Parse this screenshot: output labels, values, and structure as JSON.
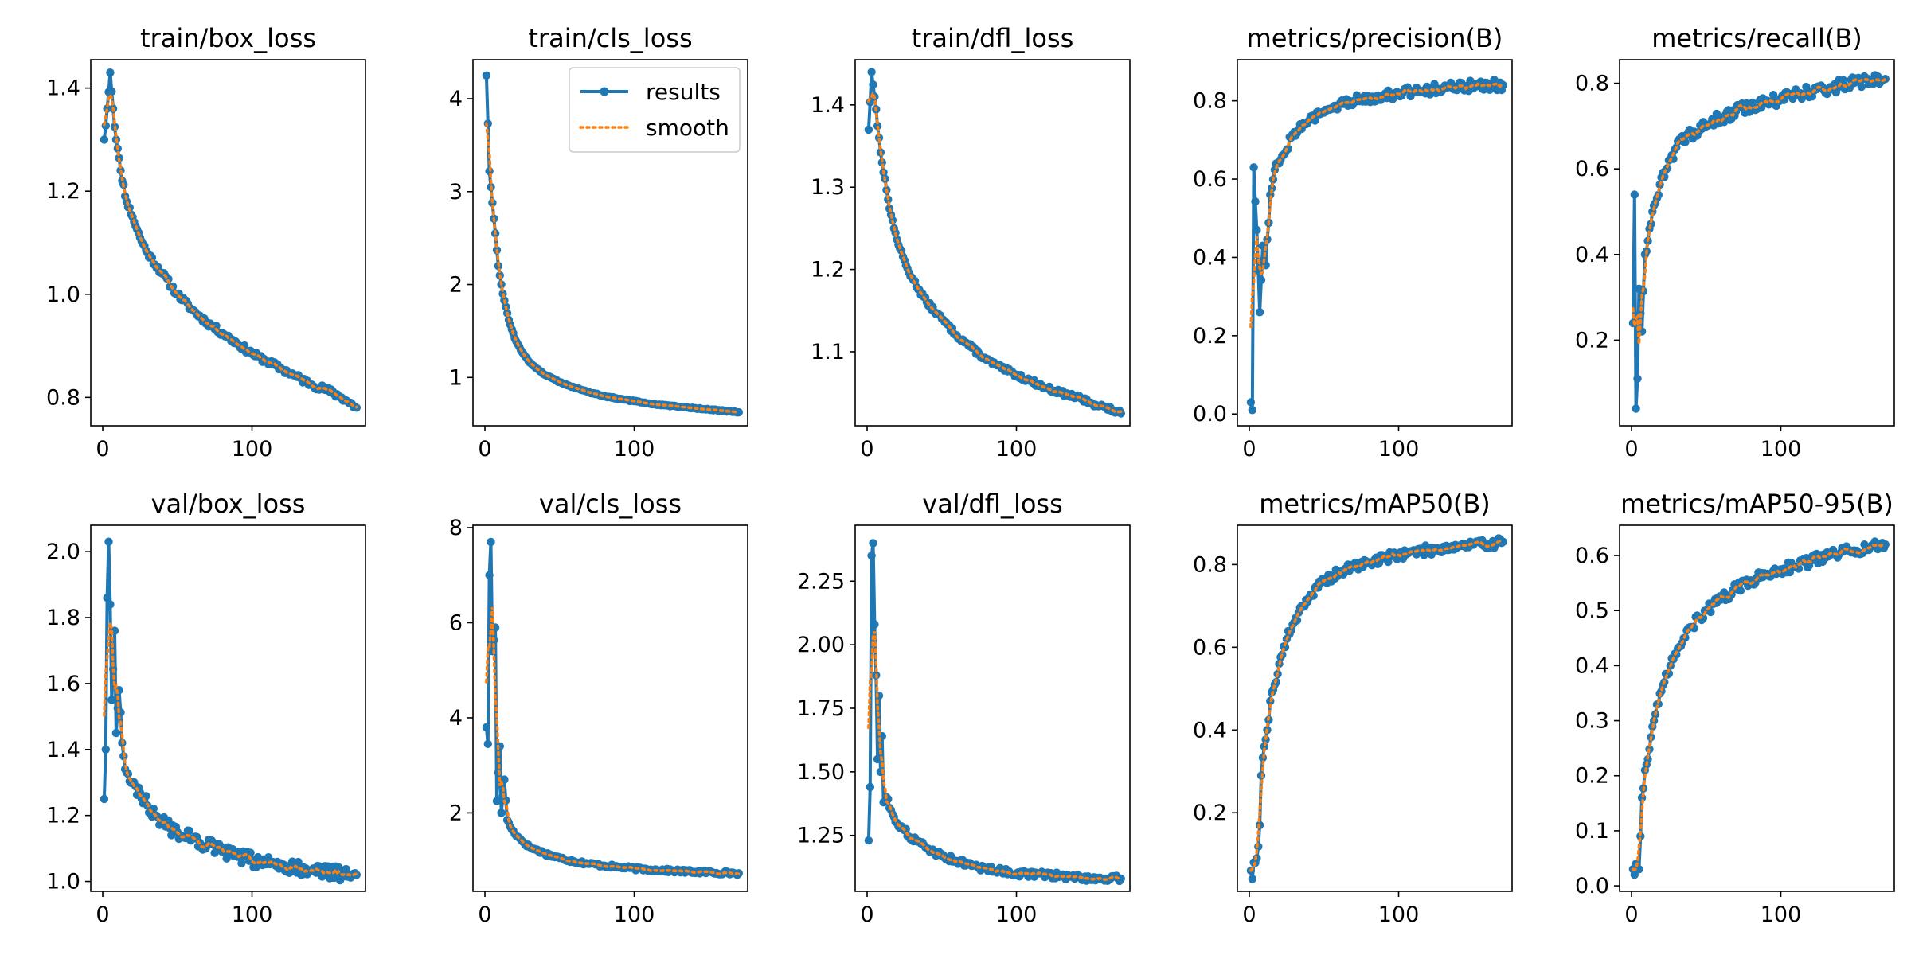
{
  "figure": {
    "legend": {
      "entries": [
        "results",
        "smooth"
      ],
      "placement": "top-right",
      "panel": 1
    }
  },
  "colors": {
    "results": "#1f77b4",
    "smooth": "#ff7f0e"
  },
  "chart_data": [
    {
      "type": "line",
      "title": "train/box_loss",
      "xlim": [
        -8,
        176
      ],
      "ylim": [
        0.745,
        1.455
      ],
      "xticks": [
        0,
        100
      ],
      "yticks": [
        0.8,
        1.0,
        1.2,
        1.4
      ],
      "yticklabels": [
        "0.8",
        "1.0",
        "1.2",
        "1.4"
      ],
      "anchors": [
        [
          1,
          1.3
        ],
        [
          3,
          1.36
        ],
        [
          5,
          1.43
        ],
        [
          7,
          1.36
        ],
        [
          9,
          1.3
        ],
        [
          12,
          1.24
        ],
        [
          16,
          1.18
        ],
        [
          20,
          1.15
        ],
        [
          25,
          1.11
        ],
        [
          30,
          1.08
        ],
        [
          40,
          1.04
        ],
        [
          50,
          1.0
        ],
        [
          60,
          0.97
        ],
        [
          70,
          0.945
        ],
        [
          80,
          0.925
        ],
        [
          90,
          0.905
        ],
        [
          100,
          0.885
        ],
        [
          110,
          0.87
        ],
        [
          120,
          0.855
        ],
        [
          130,
          0.84
        ],
        [
          140,
          0.825
        ],
        [
          150,
          0.815
        ],
        [
          160,
          0.8
        ],
        [
          170,
          0.78
        ]
      ],
      "noise": 0.006,
      "seed": 11
    },
    {
      "type": "line",
      "title": "train/cls_loss",
      "xlim": [
        -8,
        176
      ],
      "ylim": [
        0.48,
        4.42
      ],
      "xticks": [
        0,
        100
      ],
      "yticks": [
        1,
        2,
        3,
        4
      ],
      "yticklabels": [
        "1",
        "2",
        "3",
        "4"
      ],
      "anchors": [
        [
          1,
          4.25
        ],
        [
          3,
          3.22
        ],
        [
          5,
          2.88
        ],
        [
          7,
          2.55
        ],
        [
          9,
          2.2
        ],
        [
          12,
          1.9
        ],
        [
          16,
          1.62
        ],
        [
          20,
          1.42
        ],
        [
          25,
          1.27
        ],
        [
          30,
          1.16
        ],
        [
          40,
          1.03
        ],
        [
          50,
          0.95
        ],
        [
          60,
          0.89
        ],
        [
          70,
          0.84
        ],
        [
          80,
          0.8
        ],
        [
          90,
          0.77
        ],
        [
          100,
          0.745
        ],
        [
          110,
          0.72
        ],
        [
          120,
          0.7
        ],
        [
          130,
          0.685
        ],
        [
          140,
          0.67
        ],
        [
          150,
          0.655
        ],
        [
          160,
          0.64
        ],
        [
          170,
          0.625
        ]
      ],
      "noise": 0.006,
      "seed": 12
    },
    {
      "type": "line",
      "title": "train/dfl_loss",
      "xlim": [
        -8,
        176
      ],
      "ylim": [
        1.01,
        1.455
      ],
      "xticks": [
        0,
        100
      ],
      "yticks": [
        1.1,
        1.2,
        1.3,
        1.4
      ],
      "yticklabels": [
        "1.1",
        "1.2",
        "1.3",
        "1.4"
      ],
      "anchors": [
        [
          1,
          1.37
        ],
        [
          3,
          1.44
        ],
        [
          5,
          1.41
        ],
        [
          8,
          1.36
        ],
        [
          10,
          1.33
        ],
        [
          14,
          1.285
        ],
        [
          18,
          1.25
        ],
        [
          22,
          1.225
        ],
        [
          26,
          1.205
        ],
        [
          30,
          1.19
        ],
        [
          40,
          1.16
        ],
        [
          50,
          1.14
        ],
        [
          60,
          1.12
        ],
        [
          70,
          1.105
        ],
        [
          80,
          1.09
        ],
        [
          90,
          1.08
        ],
        [
          100,
          1.072
        ],
        [
          110,
          1.064
        ],
        [
          120,
          1.056
        ],
        [
          130,
          1.05
        ],
        [
          140,
          1.045
        ],
        [
          150,
          1.038
        ],
        [
          160,
          1.032
        ],
        [
          170,
          1.025
        ]
      ],
      "noise": 0.003,
      "seed": 13
    },
    {
      "type": "line",
      "title": "metrics/precision(B)",
      "xlim": [
        -8,
        176
      ],
      "ylim": [
        -0.03,
        0.905
      ],
      "xticks": [
        0,
        100
      ],
      "yticks": [
        0.0,
        0.2,
        0.4,
        0.6,
        0.8
      ],
      "yticklabels": [
        "0.0",
        "0.2",
        "0.4",
        "0.6",
        "0.8"
      ],
      "anchors": [
        [
          1,
          0.03
        ],
        [
          2,
          0.01
        ],
        [
          3,
          0.63
        ],
        [
          5,
          0.47
        ],
        [
          7,
          0.26
        ],
        [
          9,
          0.43
        ],
        [
          11,
          0.38
        ],
        [
          14,
          0.56
        ],
        [
          18,
          0.64
        ],
        [
          22,
          0.66
        ],
        [
          30,
          0.72
        ],
        [
          40,
          0.75
        ],
        [
          50,
          0.77
        ],
        [
          60,
          0.79
        ],
        [
          70,
          0.8
        ],
        [
          80,
          0.81
        ],
        [
          90,
          0.815
        ],
        [
          100,
          0.82
        ],
        [
          120,
          0.83
        ],
        [
          140,
          0.835
        ],
        [
          160,
          0.84
        ],
        [
          170,
          0.84
        ]
      ],
      "noise": 0.014,
      "seed": 14
    },
    {
      "type": "line",
      "title": "metrics/recall(B)",
      "xlim": [
        -8,
        176
      ],
      "ylim": [
        0.0,
        0.855
      ],
      "xticks": [
        0,
        100
      ],
      "yticks": [
        0.2,
        0.4,
        0.6,
        0.8
      ],
      "yticklabels": [
        "0.2",
        "0.4",
        "0.6",
        "0.8"
      ],
      "anchors": [
        [
          1,
          0.24
        ],
        [
          2,
          0.54
        ],
        [
          3,
          0.04
        ],
        [
          4,
          0.11
        ],
        [
          5,
          0.32
        ],
        [
          7,
          0.22
        ],
        [
          9,
          0.4
        ],
        [
          12,
          0.46
        ],
        [
          16,
          0.52
        ],
        [
          20,
          0.58
        ],
        [
          25,
          0.62
        ],
        [
          30,
          0.65
        ],
        [
          40,
          0.68
        ],
        [
          50,
          0.7
        ],
        [
          60,
          0.72
        ],
        [
          70,
          0.735
        ],
        [
          80,
          0.745
        ],
        [
          90,
          0.755
        ],
        [
          100,
          0.765
        ],
        [
          120,
          0.78
        ],
        [
          140,
          0.795
        ],
        [
          160,
          0.805
        ],
        [
          170,
          0.81
        ]
      ],
      "noise": 0.015,
      "seed": 15
    },
    {
      "type": "line",
      "title": "val/box_loss",
      "xlim": [
        -8,
        176
      ],
      "ylim": [
        0.97,
        2.08
      ],
      "xticks": [
        0,
        100
      ],
      "yticks": [
        1.0,
        1.2,
        1.4,
        1.6,
        1.8,
        2.0
      ],
      "yticklabels": [
        "1.0",
        "1.2",
        "1.4",
        "1.6",
        "1.8",
        "2.0"
      ],
      "anchors": [
        [
          1,
          1.25
        ],
        [
          2,
          1.4
        ],
        [
          3,
          1.86
        ],
        [
          4,
          2.03
        ],
        [
          5,
          1.84
        ],
        [
          6,
          1.55
        ],
        [
          8,
          1.76
        ],
        [
          9,
          1.45
        ],
        [
          11,
          1.58
        ],
        [
          13,
          1.42
        ],
        [
          16,
          1.33
        ],
        [
          20,
          1.3
        ],
        [
          25,
          1.27
        ],
        [
          30,
          1.23
        ],
        [
          35,
          1.2
        ],
        [
          40,
          1.18
        ],
        [
          50,
          1.15
        ],
        [
          60,
          1.13
        ],
        [
          70,
          1.11
        ],
        [
          80,
          1.09
        ],
        [
          90,
          1.075
        ],
        [
          100,
          1.065
        ],
        [
          120,
          1.05
        ],
        [
          140,
          1.035
        ],
        [
          160,
          1.025
        ],
        [
          170,
          1.02
        ]
      ],
      "noise": 0.022,
      "seed": 16
    },
    {
      "type": "line",
      "title": "val/cls_loss",
      "xlim": [
        -8,
        176
      ],
      "ylim": [
        0.35,
        8.05
      ],
      "xticks": [
        0,
        100
      ],
      "yticks": [
        2,
        4,
        6,
        8
      ],
      "yticklabels": [
        "2",
        "4",
        "6",
        "8"
      ],
      "anchors": [
        [
          1,
          3.8
        ],
        [
          2,
          3.45
        ],
        [
          3,
          7.0
        ],
        [
          4,
          7.7
        ],
        [
          5,
          5.4
        ],
        [
          7,
          5.9
        ],
        [
          8,
          2.25
        ],
        [
          10,
          3.4
        ],
        [
          11,
          2.0
        ],
        [
          13,
          2.7
        ],
        [
          15,
          1.85
        ],
        [
          18,
          1.65
        ],
        [
          22,
          1.5
        ],
        [
          26,
          1.38
        ],
        [
          30,
          1.28
        ],
        [
          40,
          1.15
        ],
        [
          50,
          1.05
        ],
        [
          60,
          0.98
        ],
        [
          70,
          0.93
        ],
        [
          80,
          0.89
        ],
        [
          90,
          0.86
        ],
        [
          100,
          0.83
        ],
        [
          120,
          0.79
        ],
        [
          140,
          0.76
        ],
        [
          160,
          0.74
        ],
        [
          170,
          0.73
        ]
      ],
      "noise": 0.035,
      "seed": 17
    },
    {
      "type": "line",
      "title": "val/dfl_loss",
      "xlim": [
        -8,
        176
      ],
      "ylim": [
        1.03,
        2.47
      ],
      "xticks": [
        0,
        100
      ],
      "yticks": [
        1.25,
        1.5,
        1.75,
        2.0,
        2.25
      ],
      "yticklabels": [
        "1.25",
        "1.50",
        "1.75",
        "2.00",
        "2.25"
      ],
      "anchors": [
        [
          1,
          1.23
        ],
        [
          2,
          1.44
        ],
        [
          3,
          2.35
        ],
        [
          4,
          2.4
        ],
        [
          5,
          2.08
        ],
        [
          6,
          1.88
        ],
        [
          7,
          1.55
        ],
        [
          8,
          1.8
        ],
        [
          9,
          1.5
        ],
        [
          10,
          1.64
        ],
        [
          11,
          1.38
        ],
        [
          13,
          1.4
        ],
        [
          16,
          1.35
        ],
        [
          20,
          1.3
        ],
        [
          25,
          1.27
        ],
        [
          30,
          1.24
        ],
        [
          40,
          1.2
        ],
        [
          50,
          1.17
        ],
        [
          60,
          1.15
        ],
        [
          70,
          1.13
        ],
        [
          80,
          1.12
        ],
        [
          90,
          1.11
        ],
        [
          100,
          1.1
        ],
        [
          120,
          1.095
        ],
        [
          140,
          1.085
        ],
        [
          160,
          1.08
        ],
        [
          170,
          1.08
        ]
      ],
      "noise": 0.012,
      "seed": 18
    },
    {
      "type": "line",
      "title": "metrics/mAP50(B)",
      "xlim": [
        -8,
        176
      ],
      "ylim": [
        0.01,
        0.895
      ],
      "xticks": [
        0,
        100
      ],
      "yticks": [
        0.2,
        0.4,
        0.6,
        0.8
      ],
      "yticklabels": [
        "0.2",
        "0.4",
        "0.6",
        "0.8"
      ],
      "anchors": [
        [
          1,
          0.06
        ],
        [
          2,
          0.04
        ],
        [
          3,
          0.08
        ],
        [
          5,
          0.09
        ],
        [
          7,
          0.17
        ],
        [
          8,
          0.29
        ],
        [
          10,
          0.36
        ],
        [
          12,
          0.4
        ],
        [
          14,
          0.47
        ],
        [
          17,
          0.51
        ],
        [
          20,
          0.56
        ],
        [
          25,
          0.62
        ],
        [
          30,
          0.66
        ],
        [
          35,
          0.7
        ],
        [
          40,
          0.72
        ],
        [
          50,
          0.76
        ],
        [
          60,
          0.78
        ],
        [
          70,
          0.795
        ],
        [
          80,
          0.805
        ],
        [
          90,
          0.815
        ],
        [
          100,
          0.825
        ],
        [
          120,
          0.835
        ],
        [
          140,
          0.845
        ],
        [
          160,
          0.85
        ],
        [
          170,
          0.855
        ]
      ],
      "noise": 0.012,
      "seed": 19
    },
    {
      "type": "line",
      "title": "metrics/mAP50-95(B)",
      "xlim": [
        -8,
        176
      ],
      "ylim": [
        -0.01,
        0.655
      ],
      "xticks": [
        0,
        100
      ],
      "yticks": [
        0.0,
        0.1,
        0.2,
        0.3,
        0.4,
        0.5,
        0.6
      ],
      "yticklabels": [
        "0.0",
        "0.1",
        "0.2",
        "0.3",
        "0.4",
        "0.5",
        "0.6"
      ],
      "anchors": [
        [
          1,
          0.03
        ],
        [
          2,
          0.02
        ],
        [
          3,
          0.04
        ],
        [
          5,
          0.03
        ],
        [
          6,
          0.09
        ],
        [
          7,
          0.16
        ],
        [
          9,
          0.21
        ],
        [
          11,
          0.23
        ],
        [
          13,
          0.27
        ],
        [
          15,
          0.3
        ],
        [
          18,
          0.33
        ],
        [
          22,
          0.37
        ],
        [
          26,
          0.4
        ],
        [
          30,
          0.42
        ],
        [
          35,
          0.45
        ],
        [
          40,
          0.47
        ],
        [
          50,
          0.5
        ],
        [
          60,
          0.52
        ],
        [
          70,
          0.54
        ],
        [
          80,
          0.555
        ],
        [
          90,
          0.565
        ],
        [
          100,
          0.575
        ],
        [
          120,
          0.59
        ],
        [
          140,
          0.605
        ],
        [
          160,
          0.615
        ],
        [
          170,
          0.62
        ]
      ],
      "noise": 0.01,
      "seed": 20
    }
  ]
}
